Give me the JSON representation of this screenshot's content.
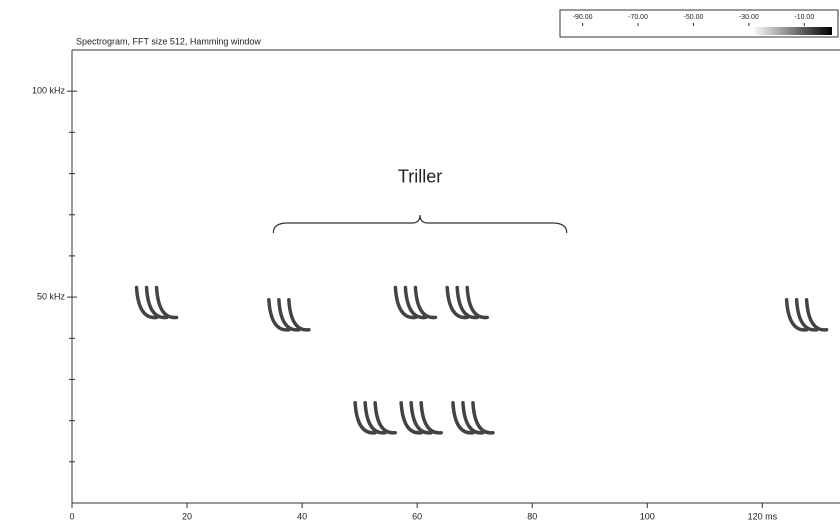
{
  "chart_data": {
    "type": "spectrogram",
    "title": "Spectrogram, FFT size 512, Hamming window",
    "annotation": "Triller",
    "annotation_span": [
      35,
      86
    ],
    "annotation_level": 68,
    "x": [
      14,
      37,
      59,
      68,
      52,
      60,
      69,
      127
    ],
    "y": [
      47,
      44,
      47,
      47,
      19,
      19,
      19,
      44
    ],
    "color": "#222222",
    "xlim": [
      0,
      133.5
    ],
    "ylim": [
      0,
      110
    ],
    "xticks": [
      0,
      20,
      40,
      60,
      80,
      100,
      {
        "value": 120,
        "label": "120 ms"
      }
    ],
    "yticks": [
      {
        "value": 50,
        "label": "50 kHz"
      },
      {
        "value": 100,
        "label": "100 kHz"
      }
    ],
    "yminorticks": [
      10,
      20,
      30,
      40,
      60,
      70,
      80,
      90
    ],
    "clim": [
      -96,
      0
    ],
    "cticks": [
      {
        "value": -90,
        "label": "-90.00"
      },
      {
        "value": -70,
        "label": "-70.00"
      },
      {
        "value": -50,
        "label": "-50.00"
      },
      {
        "value": -30,
        "label": "-30.00"
      },
      {
        "value": -10,
        "label": "-10.00"
      }
    ]
  }
}
